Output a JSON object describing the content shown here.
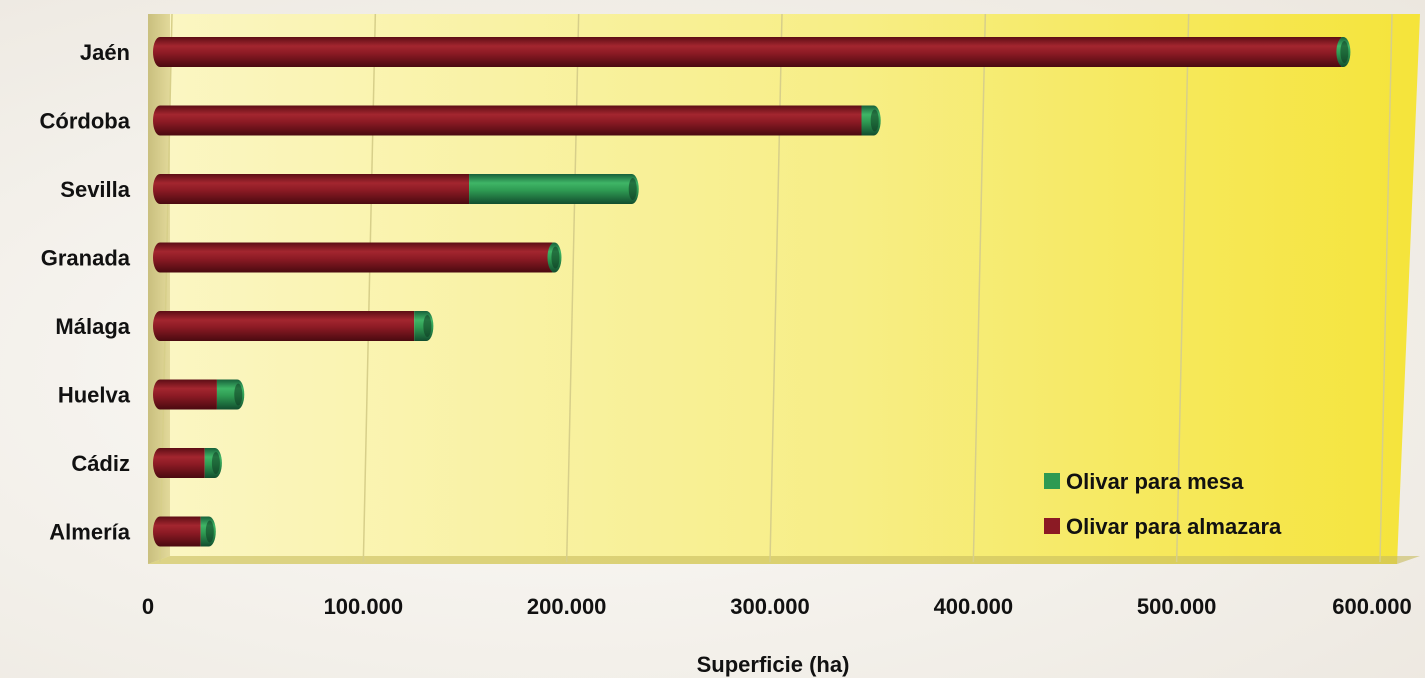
{
  "chart_data": {
    "type": "bar",
    "orientation": "horizontal",
    "stacked": true,
    "title": "",
    "xlabel": "Superficie (ha)",
    "ylabel": "",
    "xlim": [
      0,
      600000
    ],
    "x_ticks": [
      "0",
      "100.000",
      "200.000",
      "300.000",
      "400.000",
      "500.000",
      "600.000"
    ],
    "categories": [
      "Jaén",
      "Córdoba",
      "Sevilla",
      "Granada",
      "Málaga",
      "Huelva",
      "Cádiz",
      "Almería"
    ],
    "series": [
      {
        "name": "Olivar para almazara",
        "color": "#8b1a24",
        "values": [
          581000,
          345000,
          152000,
          193000,
          125000,
          28000,
          22000,
          20000
        ]
      },
      {
        "name": "Olivar para mesa",
        "color": "#2e9a52",
        "values": [
          1000,
          6000,
          80000,
          1000,
          6000,
          10000,
          5000,
          4000
        ]
      }
    ],
    "legend_position": "bottom-right",
    "grid": true,
    "plot_background": "#f8ef7c"
  }
}
